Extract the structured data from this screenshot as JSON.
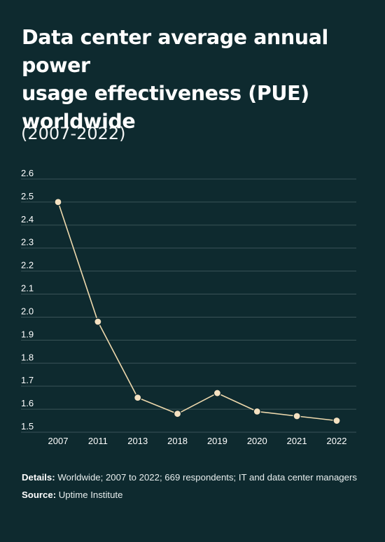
{
  "header": {
    "title_line1": "Data center average annual power",
    "title_line2": "usage effectiveness (PUE)",
    "title_line3": "worldwide",
    "subtitle": "(2007-2022)"
  },
  "footer": {
    "details_label": "Details:",
    "details_text": "Worldwide; 2007 to 2022; 669 respondents; IT and data center managers",
    "source_label": "Source:",
    "source_text": "Uptime Institute"
  },
  "colors": {
    "background": "#0e2a2f",
    "line": "#eed9ad",
    "marker_fill": "#f4e1c1",
    "grid": "#3a5358",
    "text": "#ffffff"
  },
  "chart_data": {
    "type": "line",
    "title": "Data center average annual power usage effectiveness (PUE) worldwide",
    "subtitle": "(2007-2022)",
    "xlabel": "",
    "ylabel": "",
    "categories": [
      "2007",
      "2011",
      "2013",
      "2018",
      "2019",
      "2020",
      "2021",
      "2022"
    ],
    "series": [
      {
        "values": [
          2.5,
          1.98,
          1.65,
          1.58,
          1.67,
          1.59,
          1.57,
          1.55
        ]
      }
    ],
    "ylim": [
      1.5,
      2.6
    ],
    "yticks": [
      "1.5",
      "1.6",
      "1.7",
      "1.8",
      "1.9",
      "2.0",
      "2.1",
      "2.2",
      "2.3",
      "2.4",
      "2.5",
      "2.6"
    ],
    "grid": true,
    "legend": "none",
    "markers": true
  }
}
